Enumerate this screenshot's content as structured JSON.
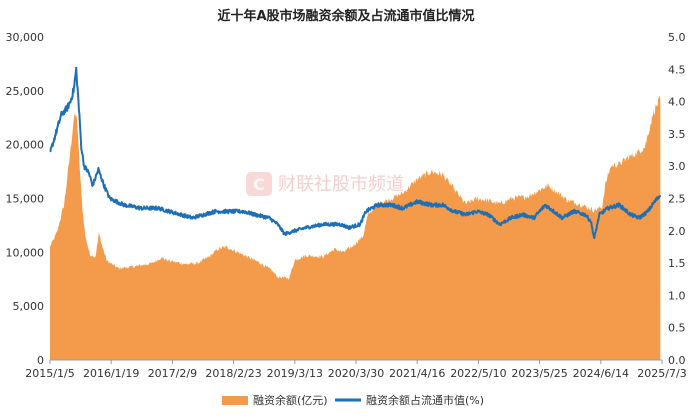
{
  "chart_data": {
    "type": "area",
    "title": "近十年A股市场融资余额及占流通市值比情况",
    "watermark": "财联社股市频道",
    "x_tick_labels": [
      "2015/1/5",
      "2016/1/19",
      "2017/2/9",
      "2018/2/23",
      "2019/3/13",
      "2020/3/30",
      "2021/4/16",
      "2022/5/10",
      "2023/5/25",
      "2024/6/14",
      "2025/7/3"
    ],
    "x_range": [
      2015.0,
      2025.75
    ],
    "left_axis": {
      "range": [
        0,
        30000
      ],
      "ticks": [
        "0",
        "5,000",
        "10,000",
        "15,000",
        "20,000",
        "25,000",
        "30,000"
      ]
    },
    "right_axis": {
      "range": [
        0.0,
        5.0
      ],
      "ticks": [
        "0.0",
        "0.5",
        "1.0",
        "1.5",
        "2.0",
        "2.5",
        "3.0",
        "3.5",
        "4.0",
        "4.5",
        "5.0"
      ]
    },
    "legend_position": "bottom",
    "series": [
      {
        "name": "融资余额(亿元)",
        "type": "area",
        "axis": "left",
        "color": "#f39a4b",
        "points": [
          [
            2015.0,
            10500
          ],
          [
            2015.12,
            11800
          ],
          [
            2015.25,
            14500
          ],
          [
            2015.35,
            19000
          ],
          [
            2015.42,
            22500
          ],
          [
            2015.47,
            22700
          ],
          [
            2015.52,
            18000
          ],
          [
            2015.57,
            14000
          ],
          [
            2015.62,
            11500
          ],
          [
            2015.7,
            9800
          ],
          [
            2015.8,
            9600
          ],
          [
            2015.86,
            11800
          ],
          [
            2015.92,
            10500
          ],
          [
            2016.0,
            9200
          ],
          [
            2016.2,
            8500
          ],
          [
            2016.5,
            8700
          ],
          [
            2016.8,
            9000
          ],
          [
            2016.95,
            9500
          ],
          [
            2017.1,
            9200
          ],
          [
            2017.4,
            8900
          ],
          [
            2017.6,
            9000
          ],
          [
            2017.8,
            9600
          ],
          [
            2017.95,
            10300
          ],
          [
            2018.1,
            10500
          ],
          [
            2018.3,
            10000
          ],
          [
            2018.5,
            9500
          ],
          [
            2018.7,
            9000
          ],
          [
            2018.9,
            8300
          ],
          [
            2019.0,
            7700
          ],
          [
            2019.2,
            7600
          ],
          [
            2019.3,
            9300
          ],
          [
            2019.5,
            9700
          ],
          [
            2019.8,
            9600
          ],
          [
            2020.0,
            10300
          ],
          [
            2020.15,
            10000
          ],
          [
            2020.3,
            10500
          ],
          [
            2020.5,
            11500
          ],
          [
            2020.58,
            13400
          ],
          [
            2020.75,
            14500
          ],
          [
            2021.0,
            15000
          ],
          [
            2021.2,
            15500
          ],
          [
            2021.45,
            16800
          ],
          [
            2021.7,
            17500
          ],
          [
            2021.9,
            17200
          ],
          [
            2022.05,
            16200
          ],
          [
            2022.3,
            14500
          ],
          [
            2022.5,
            15000
          ],
          [
            2022.7,
            14800
          ],
          [
            2022.9,
            14500
          ],
          [
            2023.1,
            15000
          ],
          [
            2023.4,
            15200
          ],
          [
            2023.6,
            15800
          ],
          [
            2023.75,
            16200
          ],
          [
            2023.9,
            15600
          ],
          [
            2024.1,
            14800
          ],
          [
            2024.3,
            14500
          ],
          [
            2024.55,
            13900
          ],
          [
            2024.7,
            14200
          ],
          [
            2024.75,
            16200
          ],
          [
            2024.85,
            18000
          ],
          [
            2025.0,
            18200
          ],
          [
            2025.15,
            18800
          ],
          [
            2025.3,
            19200
          ],
          [
            2025.45,
            19800
          ],
          [
            2025.6,
            23000
          ],
          [
            2025.72,
            24300
          ]
        ]
      },
      {
        "name": "融资余额占流通市值(%)",
        "type": "line",
        "axis": "right",
        "color": "#1f6fb4",
        "points": [
          [
            2015.0,
            3.2
          ],
          [
            2015.1,
            3.5
          ],
          [
            2015.2,
            3.8
          ],
          [
            2015.3,
            3.9
          ],
          [
            2015.36,
            4.0
          ],
          [
            2015.42,
            4.2
          ],
          [
            2015.46,
            4.5
          ],
          [
            2015.5,
            4.0
          ],
          [
            2015.55,
            3.3
          ],
          [
            2015.6,
            3.0
          ],
          [
            2015.68,
            2.9
          ],
          [
            2015.75,
            2.7
          ],
          [
            2015.85,
            2.95
          ],
          [
            2015.95,
            2.7
          ],
          [
            2016.05,
            2.5
          ],
          [
            2016.3,
            2.4
          ],
          [
            2016.6,
            2.35
          ],
          [
            2016.9,
            2.35
          ],
          [
            2017.1,
            2.3
          ],
          [
            2017.3,
            2.25
          ],
          [
            2017.5,
            2.2
          ],
          [
            2017.7,
            2.25
          ],
          [
            2017.9,
            2.3
          ],
          [
            2018.1,
            2.3
          ],
          [
            2018.4,
            2.3
          ],
          [
            2018.6,
            2.25
          ],
          [
            2018.85,
            2.2
          ],
          [
            2019.0,
            2.1
          ],
          [
            2019.12,
            1.95
          ],
          [
            2019.3,
            2.0
          ],
          [
            2019.5,
            2.05
          ],
          [
            2019.8,
            2.1
          ],
          [
            2020.1,
            2.1
          ],
          [
            2020.25,
            2.05
          ],
          [
            2020.45,
            2.1
          ],
          [
            2020.55,
            2.3
          ],
          [
            2020.75,
            2.4
          ],
          [
            2021.0,
            2.4
          ],
          [
            2021.2,
            2.35
          ],
          [
            2021.45,
            2.45
          ],
          [
            2021.7,
            2.4
          ],
          [
            2021.9,
            2.4
          ],
          [
            2022.1,
            2.3
          ],
          [
            2022.3,
            2.25
          ],
          [
            2022.5,
            2.3
          ],
          [
            2022.7,
            2.25
          ],
          [
            2022.9,
            2.1
          ],
          [
            2023.1,
            2.2
          ],
          [
            2023.3,
            2.25
          ],
          [
            2023.5,
            2.2
          ],
          [
            2023.7,
            2.4
          ],
          [
            2023.85,
            2.3
          ],
          [
            2024.0,
            2.2
          ],
          [
            2024.2,
            2.3
          ],
          [
            2024.4,
            2.25
          ],
          [
            2024.5,
            2.15
          ],
          [
            2024.56,
            1.88
          ],
          [
            2024.65,
            2.25
          ],
          [
            2024.8,
            2.35
          ],
          [
            2025.0,
            2.4
          ],
          [
            2025.2,
            2.25
          ],
          [
            2025.35,
            2.2
          ],
          [
            2025.5,
            2.3
          ],
          [
            2025.62,
            2.45
          ],
          [
            2025.72,
            2.55
          ]
        ]
      }
    ]
  }
}
